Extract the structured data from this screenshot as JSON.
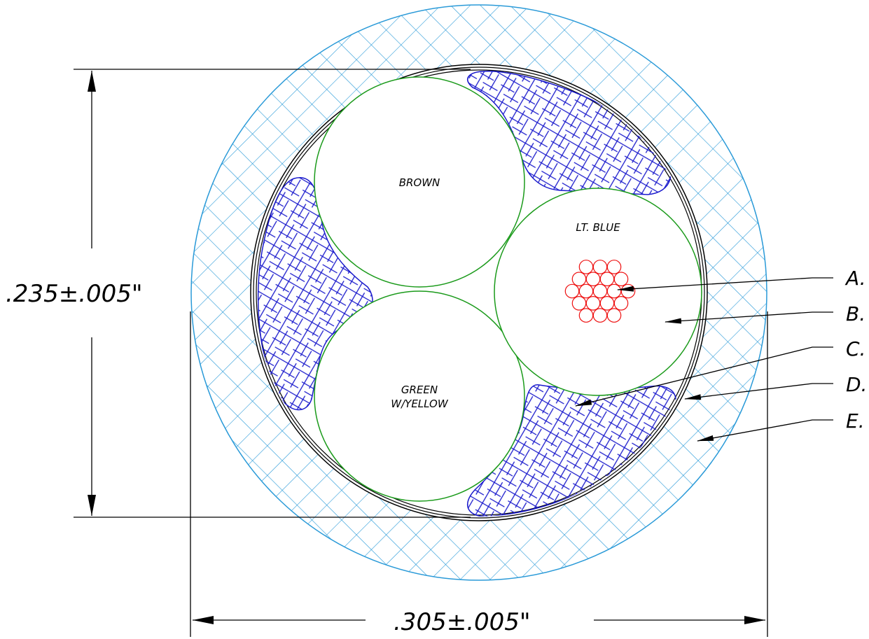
{
  "dimensions": {
    "height_label": ".235±.005\"",
    "width_label": ".305±.005\""
  },
  "conductors": {
    "brown": "BROWN",
    "lt_blue": "LT. BLUE",
    "green_line1": "GREEN",
    "green_line2": "W/YELLOW"
  },
  "callouts": [
    "A.",
    "B.",
    "C.",
    "D.",
    "E."
  ],
  "colors": {
    "jacket_hatch": "#2a9ad8",
    "filler_hatch": "#1a1acc",
    "conductor_outline": "#1a9a1a",
    "strands": "#ee1111",
    "lines": "#000000"
  }
}
